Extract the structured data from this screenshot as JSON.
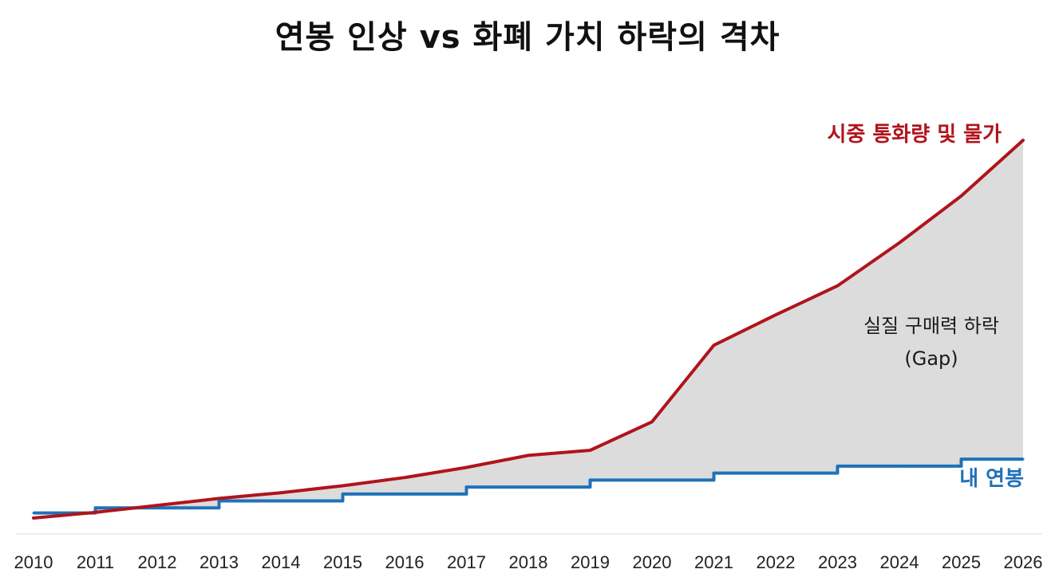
{
  "chart_data": {
    "type": "area",
    "title": "연봉 인상 vs 화폐 가치 하락의 격차",
    "x": [
      "2010",
      "2011",
      "2012",
      "2013",
      "2014",
      "2015",
      "2016",
      "2017",
      "2018",
      "2019",
      "2020",
      "2021",
      "2022",
      "2023",
      "2024",
      "2025",
      "2026"
    ],
    "series": [
      {
        "name": "시중 통화량 및 물가",
        "color": "#b0141c",
        "values": [
          0,
          9,
          20,
          31,
          40,
          51,
          64,
          80,
          99,
          107,
          152,
          273,
          321,
          367,
          435,
          509,
          597
        ]
      },
      {
        "name": "내 연봉",
        "color": "#1f72b8",
        "values": [
          8,
          16,
          16,
          27,
          27,
          38,
          38,
          49,
          49,
          60,
          60,
          71,
          71,
          82,
          82,
          93,
          93
        ],
        "style": "step"
      }
    ],
    "gap_annotation": {
      "line1": "실질 구매력 하락",
      "line2": "(Gap)"
    },
    "ylim": [
      0,
      600
    ],
    "grid": false,
    "xlabel": "",
    "ylabel": ""
  }
}
